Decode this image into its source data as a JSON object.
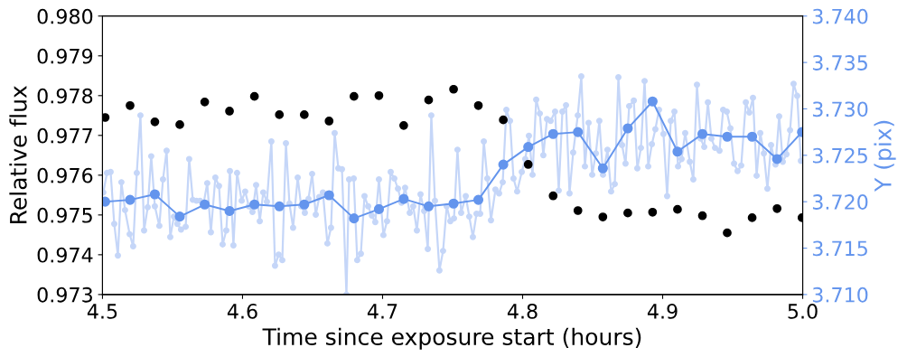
{
  "chart_data": {
    "type": "scatter",
    "xlabel": "Time since exposure start (hours)",
    "ylabel": "Relative flux",
    "y2label": "Y (pix)",
    "xlim": [
      4.5,
      5.0
    ],
    "xticks": [
      {
        "value": 4.5,
        "label": "4.5"
      },
      {
        "value": 4.6,
        "label": "4.6"
      },
      {
        "value": 4.7,
        "label": "4.7"
      },
      {
        "value": 4.8,
        "label": "4.8"
      },
      {
        "value": 4.9,
        "label": "4.9"
      },
      {
        "value": 5.0,
        "label": "5.0"
      }
    ],
    "ylim": [
      0.973,
      0.98
    ],
    "yticks": [
      {
        "value": 0.973,
        "label": "0.973"
      },
      {
        "value": 0.974,
        "label": "0.974"
      },
      {
        "value": 0.975,
        "label": "0.975"
      },
      {
        "value": 0.976,
        "label": "0.976"
      },
      {
        "value": 0.977,
        "label": "0.977"
      },
      {
        "value": 0.978,
        "label": "0.978"
      },
      {
        "value": 0.979,
        "label": "0.979"
      },
      {
        "value": 0.98,
        "label": "0.980"
      }
    ],
    "y2lim": [
      3.71,
      3.74
    ],
    "y2ticks": [
      {
        "value": 3.71,
        "label": "3.710"
      },
      {
        "value": 3.715,
        "label": "3.715"
      },
      {
        "value": 3.72,
        "label": "3.720"
      },
      {
        "value": 3.725,
        "label": "3.725"
      },
      {
        "value": 3.73,
        "label": "3.730"
      },
      {
        "value": 3.735,
        "label": "3.735"
      },
      {
        "value": 3.74,
        "label": "3.740"
      }
    ],
    "marker": "circle",
    "grid": false,
    "legend": false,
    "series": [
      {
        "type": "line",
        "axis": "y2",
        "color": "#c5d6f8",
        "x": [
          4.5006,
          4.5032,
          4.5058,
          4.5084,
          4.511,
          4.5135,
          4.5161,
          4.5194,
          4.5219,
          4.5245,
          4.5271,
          4.5297,
          4.5323,
          4.5348,
          4.5374,
          4.5406,
          4.5432,
          4.5458,
          4.5484,
          4.551,
          4.5535,
          4.5561,
          4.5594,
          4.5619,
          4.5645,
          4.5671,
          4.5697,
          4.5723,
          4.5748,
          4.5774,
          4.5806,
          4.5832,
          4.5858,
          4.5884,
          4.591,
          4.5935,
          4.5961,
          4.5994,
          4.6019,
          4.6045,
          4.6071,
          4.6097,
          4.6123,
          4.6148,
          4.6174,
          4.6206,
          4.6232,
          4.6258,
          4.6284,
          4.631,
          4.6335,
          4.6361,
          4.6394,
          4.6419,
          4.6445,
          4.6471,
          4.6497,
          4.6523,
          4.6548,
          4.6574,
          4.6606,
          4.6632,
          4.6658,
          4.6684,
          4.671,
          4.6742,
          4.6761,
          4.6794,
          4.6819,
          4.6845,
          4.6871,
          4.6897,
          4.6923,
          4.6948,
          4.6974,
          4.7006,
          4.7032,
          4.7058,
          4.7084,
          4.711,
          4.7135,
          4.7161,
          4.7194,
          4.7219,
          4.7245,
          4.7271,
          4.7297,
          4.7323,
          4.7348,
          4.7374,
          4.7406,
          4.7432,
          4.7458,
          4.7484,
          4.751,
          4.7535,
          4.7561,
          4.7594,
          4.7619,
          4.7645,
          4.7671,
          4.7697,
          4.7723,
          4.7748,
          4.7774,
          4.7806,
          4.7832,
          4.7858,
          4.7884,
          4.791,
          4.7935,
          4.7961,
          4.7994,
          4.8019,
          4.8045,
          4.8071,
          4.8097,
          4.8123,
          4.8148,
          4.8174,
          4.82,
          4.8232,
          4.8258,
          4.8284,
          4.831,
          4.8335,
          4.8361,
          4.8394,
          4.8419,
          4.8445,
          4.8471,
          4.8497,
          4.8523,
          4.8548,
          4.8574,
          4.8606,
          4.8632,
          4.8658,
          4.8684,
          4.871,
          4.8735,
          4.8761,
          4.8794,
          4.8819,
          4.8845,
          4.8871,
          4.8897,
          4.8923,
          4.8948,
          4.8974,
          4.9006,
          4.9032,
          4.9058,
          4.9084,
          4.911,
          4.9135,
          4.9161,
          4.9194,
          4.9219,
          4.9245,
          4.9271,
          4.9297,
          4.9323,
          4.9348,
          4.9374,
          4.9406,
          4.9432,
          4.9458,
          4.9484,
          4.951,
          4.9535,
          4.9561,
          4.9594,
          4.9619,
          4.9645,
          4.9671,
          4.9697,
          4.9723,
          4.9748,
          4.9774,
          4.9806,
          4.9832,
          4.9858,
          4.9884,
          4.991,
          4.9935,
          4.9961,
          4.9987
        ],
        "values": [
          3.721,
          3.7231,
          3.7232,
          3.7176,
          3.7142,
          3.7221,
          3.7191,
          3.7165,
          3.7152,
          3.7231,
          3.7293,
          3.7169,
          3.7194,
          3.7249,
          3.7195,
          3.7174,
          3.7224,
          3.7255,
          3.7162,
          3.7184,
          3.7176,
          3.717,
          3.7173,
          3.7246,
          3.7202,
          3.7201,
          3.7201,
          3.7199,
          3.722,
          3.7167,
          3.7226,
          3.7217,
          3.7154,
          3.7169,
          3.7233,
          3.7153,
          3.7231,
          3.7201,
          3.7211,
          3.7195,
          3.7189,
          3.7218,
          3.7179,
          3.721,
          3.72,
          3.7265,
          3.7131,
          3.7143,
          3.7137,
          3.7263,
          3.7198,
          3.7172,
          3.7226,
          3.7195,
          3.7188,
          3.7203,
          3.723,
          3.7186,
          3.7205,
          3.721,
          3.7155,
          3.7172,
          3.7274,
          3.7236,
          3.7235,
          3.71,
          3.7224,
          3.7225,
          3.7137,
          3.7144,
          3.7206,
          3.7195,
          3.7185,
          3.7178,
          3.7224,
          3.7164,
          3.7179,
          3.7232,
          3.7225,
          3.7214,
          3.7199,
          3.7215,
          3.7188,
          3.7195,
          3.7169,
          3.7208,
          3.719,
          3.7149,
          3.7293,
          3.7201,
          3.7126,
          3.7147,
          3.7195,
          3.7179,
          3.7182,
          3.7256,
          3.7188,
          3.7206,
          3.7184,
          3.7162,
          3.7187,
          3.7187,
          3.7265,
          3.7225,
          3.718,
          3.7213,
          3.7209,
          3.7221,
          3.7299,
          3.7287,
          3.7225,
          3.7211,
          3.7232,
          3.7246,
          3.7271,
          3.7229,
          3.731,
          3.7295,
          3.725,
          3.7289,
          3.7287,
          3.7297,
          3.7212,
          3.7297,
          3.7304,
          3.7209,
          3.7253,
          3.7293,
          3.7335,
          3.7238,
          3.7285,
          3.7229,
          3.7252,
          3.7287,
          3.7229,
          3.7256,
          3.7211,
          3.7219,
          3.7334,
          3.7261,
          3.7241,
          3.7303,
          3.7309,
          3.7236,
          3.7258,
          3.733,
          3.7238,
          3.7262,
          3.7278,
          3.7299,
          3.7273,
          3.7206,
          3.7287,
          3.7297,
          3.7238,
          3.7246,
          3.7274,
          3.7243,
          3.7224,
          3.7326,
          3.7268,
          3.7259,
          3.7307,
          3.7268,
          3.7258,
          3.7255,
          3.7299,
          3.7297,
          3.7279,
          3.7241,
          3.7233,
          3.7239,
          3.7307,
          3.7296,
          3.7312,
          3.7228,
          3.7274,
          3.7252,
          3.7214,
          3.7261,
          3.724,
          3.7292,
          3.7243,
          3.7251,
          3.7277,
          3.7327,
          3.7314,
          3.7244
        ]
      },
      {
        "type": "line",
        "axis": "y2",
        "color": "#6495ed",
        "x": [
          4.5019,
          4.5197,
          4.5374,
          4.5552,
          4.573,
          4.5907,
          4.6085,
          4.6263,
          4.6441,
          4.6618,
          4.6796,
          4.6974,
          4.7151,
          4.7329,
          4.7507,
          4.7684,
          4.7862,
          4.804,
          4.8218,
          4.8395,
          4.8573,
          4.8751,
          4.8928,
          4.9106,
          4.9284,
          4.9461,
          4.9639,
          4.9817,
          4.9995
        ],
        "values": [
          3.72,
          3.7202,
          3.7208,
          3.7184,
          3.7197,
          3.719,
          3.7197,
          3.7195,
          3.7197,
          3.7207,
          3.7182,
          3.7192,
          3.7203,
          3.7195,
          3.7198,
          3.7202,
          3.724,
          3.7259,
          3.7273,
          3.7275,
          3.7236,
          3.7279,
          3.7308,
          3.7254,
          3.7273,
          3.727,
          3.727,
          3.7246,
          3.7275
        ]
      },
      {
        "color": "#000000",
        "x": [
          4.5019,
          4.5197,
          4.5374,
          4.5552,
          4.573,
          4.5907,
          4.6085,
          4.6263,
          4.6441,
          4.6618,
          4.6796,
          4.6974,
          4.7151,
          4.7329,
          4.7507,
          4.7684,
          4.7862,
          4.804,
          4.8218,
          4.8395,
          4.8573,
          4.8751,
          4.8928,
          4.9106,
          4.9284,
          4.9461,
          4.9639,
          4.9817,
          4.9995
        ],
        "values": [
          0.97745,
          0.97775,
          0.97734,
          0.97727,
          0.97784,
          0.97761,
          0.97798,
          0.97752,
          0.97752,
          0.97736,
          0.97798,
          0.978,
          0.97725,
          0.97789,
          0.97816,
          0.97775,
          0.97739,
          0.97627,
          0.97548,
          0.97511,
          0.97495,
          0.97505,
          0.97507,
          0.97514,
          0.97498,
          0.97455,
          0.97493,
          0.97516,
          0.97493
        ]
      }
    ]
  }
}
